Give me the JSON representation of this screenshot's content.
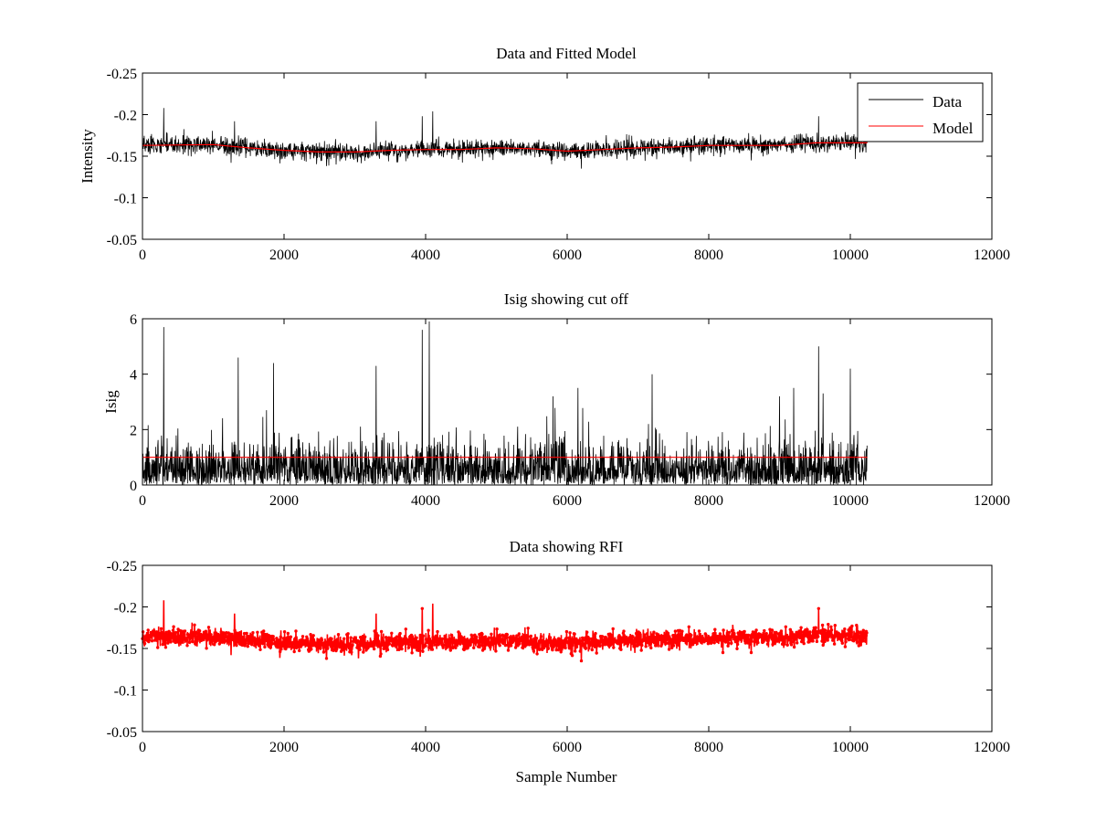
{
  "chart_data": [
    {
      "type": "line",
      "title": "Data and Fitted Model",
      "xlabel": "",
      "ylabel": "Intensity",
      "xlim": [
        0,
        12000
      ],
      "ylim": [
        -0.25,
        -0.05
      ],
      "y_reversed": true,
      "xticks": [
        0,
        2000,
        4000,
        6000,
        8000,
        10000,
        12000
      ],
      "yticks": [
        -0.25,
        -0.2,
        -0.15,
        -0.1,
        -0.05
      ],
      "xtick_labels": [
        "0",
        "2000",
        "4000",
        "6000",
        "8000",
        "10000",
        "12000"
      ],
      "ytick_labels": [
        "-0.25",
        "-0.2",
        "-0.15",
        "-0.1",
        "-0.05"
      ],
      "grid": false,
      "legend_position": "top-right",
      "series": [
        {
          "name": "Data",
          "color": "#000000",
          "style": "line",
          "n_samples": 10240,
          "trend": {
            "x": [
              0,
              1000,
              1500,
              2000,
              2500,
              3000,
              3500,
              4000,
              4500,
              5000,
              5500,
              6000,
              6500,
              7000,
              7500,
              8000,
              8500,
              9000,
              9500,
              10240
            ],
            "y": [
              -0.163,
              -0.164,
              -0.16,
              -0.157,
              -0.155,
              -0.155,
              -0.157,
              -0.158,
              -0.158,
              -0.16,
              -0.159,
              -0.156,
              -0.158,
              -0.16,
              -0.161,
              -0.163,
              -0.163,
              -0.163,
              -0.166,
              -0.166
            ]
          },
          "noise_amplitude": 0.012,
          "spikes": [
            {
              "x": 300,
              "y": -0.208
            },
            {
              "x": 1250,
              "y": -0.142
            },
            {
              "x": 1300,
              "y": -0.192
            },
            {
              "x": 2600,
              "y": -0.138
            },
            {
              "x": 3300,
              "y": -0.192
            },
            {
              "x": 3950,
              "y": -0.198
            },
            {
              "x": 4100,
              "y": -0.204
            },
            {
              "x": 6200,
              "y": -0.135
            },
            {
              "x": 8600,
              "y": -0.145
            },
            {
              "x": 9550,
              "y": -0.198
            }
          ]
        },
        {
          "name": "Model",
          "color": "#ff0000",
          "style": "line",
          "x": [
            0,
            1000,
            1500,
            2000,
            2500,
            3000,
            3500,
            4000,
            4500,
            5000,
            5500,
            6000,
            6500,
            7000,
            7500,
            8000,
            8500,
            9000,
            9500,
            10240
          ],
          "y": [
            -0.163,
            -0.164,
            -0.16,
            -0.157,
            -0.155,
            -0.155,
            -0.157,
            -0.158,
            -0.158,
            -0.16,
            -0.159,
            -0.156,
            -0.158,
            -0.16,
            -0.161,
            -0.163,
            -0.163,
            -0.163,
            -0.166,
            -0.166
          ]
        }
      ]
    },
    {
      "type": "line",
      "title": "Isig showing cut off",
      "xlabel": "",
      "ylabel": "Isig",
      "xlim": [
        0,
        12000
      ],
      "ylim": [
        0,
        6
      ],
      "y_reversed": false,
      "xticks": [
        0,
        2000,
        4000,
        6000,
        8000,
        10000,
        12000
      ],
      "yticks": [
        0,
        2,
        4,
        6
      ],
      "xtick_labels": [
        "0",
        "2000",
        "4000",
        "6000",
        "8000",
        "10000",
        "12000"
      ],
      "ytick_labels": [
        "0",
        "2",
        "4",
        "6"
      ],
      "grid": false,
      "series": [
        {
          "color": "#000000",
          "style": "line",
          "n_samples": 10240,
          "baseline_max": 1.6,
          "spikes": [
            {
              "x": 300,
              "y": 5.7
            },
            {
              "x": 1350,
              "y": 4.6
            },
            {
              "x": 1850,
              "y": 4.4
            },
            {
              "x": 3300,
              "y": 4.3
            },
            {
              "x": 3950,
              "y": 5.6
            },
            {
              "x": 4050,
              "y": 5.9
            },
            {
              "x": 5800,
              "y": 3.2
            },
            {
              "x": 6150,
              "y": 3.5
            },
            {
              "x": 7200,
              "y": 4.0
            },
            {
              "x": 9000,
              "y": 3.2
            },
            {
              "x": 9200,
              "y": 3.5
            },
            {
              "x": 9550,
              "y": 5.0
            },
            {
              "x": 10000,
              "y": 4.2
            }
          ]
        },
        {
          "name": "cut off",
          "color": "#ff0000",
          "style": "line",
          "x": [
            0,
            10240
          ],
          "y": [
            1,
            1
          ]
        }
      ]
    },
    {
      "type": "scatter",
      "title": "Data showing RFI",
      "xlabel": "Sample Number",
      "ylabel": "",
      "xlim": [
        0,
        12000
      ],
      "ylim": [
        -0.25,
        -0.05
      ],
      "y_reversed": true,
      "xticks": [
        0,
        2000,
        4000,
        6000,
        8000,
        10000,
        12000
      ],
      "yticks": [
        -0.25,
        -0.2,
        -0.15,
        -0.1,
        -0.05
      ],
      "xtick_labels": [
        "0",
        "2000",
        "4000",
        "6000",
        "8000",
        "10000",
        "12000"
      ],
      "ytick_labels": [
        "-0.25",
        "-0.2",
        "-0.15",
        "-0.1",
        "-0.05"
      ],
      "grid": false,
      "series": [
        {
          "color": "#ff0000",
          "style": "line-with-markers",
          "n_samples": 10240,
          "trend": {
            "x": [
              0,
              1000,
              1500,
              2000,
              2500,
              3000,
              3500,
              4000,
              4500,
              5000,
              5500,
              6000,
              6500,
              7000,
              7500,
              8000,
              8500,
              9000,
              9500,
              10240
            ],
            "y": [
              -0.163,
              -0.164,
              -0.16,
              -0.157,
              -0.155,
              -0.155,
              -0.157,
              -0.158,
              -0.158,
              -0.16,
              -0.159,
              -0.156,
              -0.158,
              -0.16,
              -0.161,
              -0.163,
              -0.163,
              -0.163,
              -0.166,
              -0.166
            ]
          },
          "noise_amplitude": 0.012,
          "spikes": [
            {
              "x": 300,
              "y": -0.208
            },
            {
              "x": 1250,
              "y": -0.142
            },
            {
              "x": 1300,
              "y": -0.192
            },
            {
              "x": 2600,
              "y": -0.138
            },
            {
              "x": 3300,
              "y": -0.192
            },
            {
              "x": 3950,
              "y": -0.198
            },
            {
              "x": 4100,
              "y": -0.204
            },
            {
              "x": 6200,
              "y": -0.135
            },
            {
              "x": 8600,
              "y": -0.145
            },
            {
              "x": 9550,
              "y": -0.198
            }
          ]
        }
      ]
    }
  ],
  "legend": {
    "items": [
      {
        "label": "Data",
        "color": "#000000"
      },
      {
        "label": "Model",
        "color": "#ff0000"
      }
    ]
  }
}
